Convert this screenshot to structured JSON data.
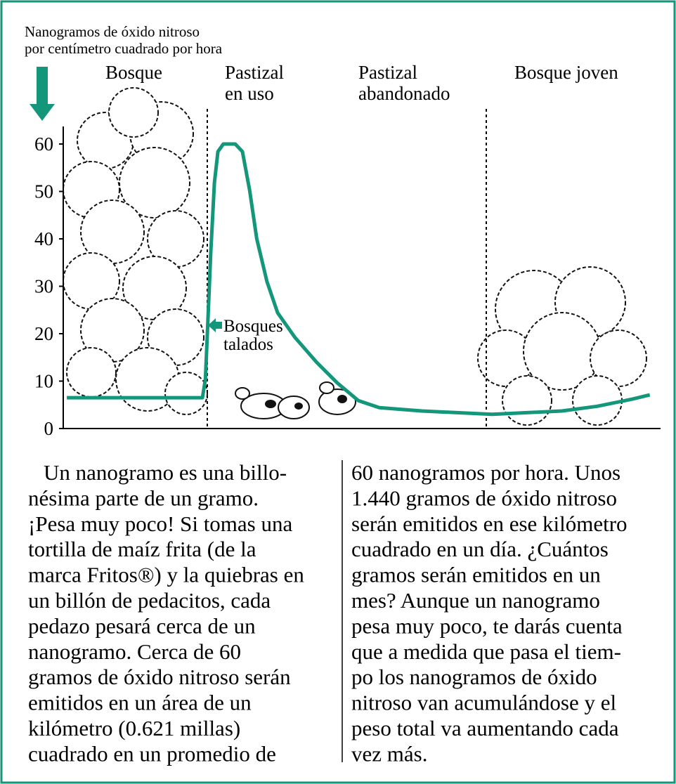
{
  "chart_data": {
    "type": "line",
    "y_label": [
      "Nanogramos de óxido nitroso",
      "por centímetro cuadrado por hora"
    ],
    "regions": [
      [
        "Bosque"
      ],
      [
        "Pastizal",
        "en uso"
      ],
      [
        "Pastizal",
        "abandonado"
      ],
      [
        "Bosque joven"
      ]
    ],
    "annotation": [
      "Bosques",
      "talados"
    ],
    "x": [
      0.6,
      23.3,
      23.8,
      24.2,
      24.7,
      25.3,
      25.9,
      26.8,
      28.8,
      30,
      31.2,
      32.4,
      34.1,
      35.9,
      38.8,
      42.4,
      45.9,
      49.4,
      52.9,
      60,
      71.8,
      83.5,
      89.4,
      95.3,
      98.2
    ],
    "values": [
      6.5,
      6.5,
      10.4,
      22.2,
      37,
      51.8,
      58.4,
      60,
      60,
      58.4,
      50.3,
      40,
      31,
      24.4,
      19.2,
      14,
      9.6,
      5.9,
      4.4,
      3.7,
      3,
      3.7,
      4.7,
      6.2,
      7.1
    ],
    "color": "#13967a",
    "xlim": [
      0,
      100
    ],
    "ylim": [
      0,
      60
    ],
    "yticks": [
      0,
      10,
      20,
      30,
      40,
      50,
      60
    ]
  },
  "text": {
    "columns": [
      [
        "Un nanogramo es una billo-",
        "nésima parte de un gramo.",
        "¡Pesa muy poco! Si tomas una",
        "tortilla de maíz frita (de la",
        "marca Fritos®) y la quiebras en",
        "un billón de pedacitos, cada",
        "pedazo pesará cerca de un",
        "nanogramo. Cerca de 60",
        "gramos de óxido nitroso serán",
        "emitidos en un área de un",
        "kilómetro (0.621 millas)",
        "cuadrado en un promedio de"
      ],
      [
        "60 nanogramos por hora. Unos",
        "1.440 gramos de óxido nitroso",
        "serán emitidos en ese kilómetro",
        "cuadrado en un día. ¿Cuántos",
        "gramos serán emitidos en un",
        "mes? Aunque un nanogramo",
        "pesa muy poco, te darás cuenta",
        "que a medida que pasa el tiem-",
        "po los nanogramos de óxido",
        "nitroso van acumulándose y el",
        "peso total va aumentando cada",
        "vez más."
      ]
    ]
  }
}
